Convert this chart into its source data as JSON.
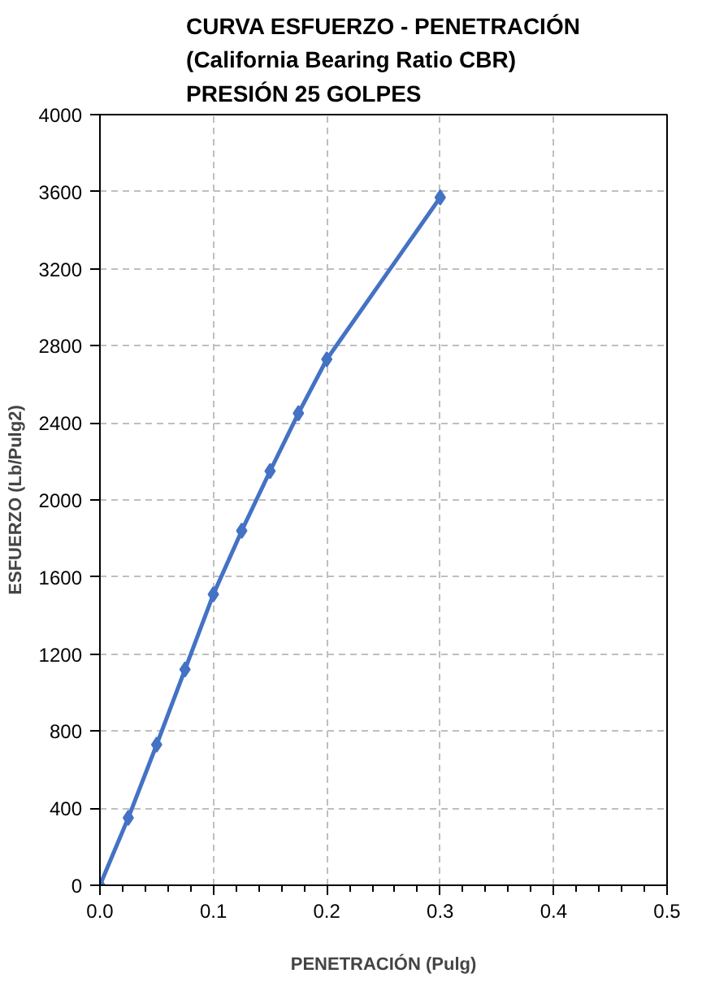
{
  "chart_data": {
    "type": "line",
    "title": "CURVA ESFUERZO - PENETRACIÓN\n(California Bearing Ratio CBR)\nPRESIÓN 25 GOLPES",
    "xlabel": "PENETRACIÓN (Pulg)",
    "ylabel": "ESFUERZO (Lb/Pulg2)",
    "x": [
      0,
      0.025,
      0.05,
      0.075,
      0.1,
      0.125,
      0.15,
      0.175,
      0.2,
      0.3
    ],
    "series": [
      {
        "color": "#4472c4",
        "values": [
          0,
          350,
          730,
          1120,
          1510,
          1840,
          2150,
          2450,
          2730,
          3570
        ]
      }
    ],
    "xlim": [
      0,
      0.5
    ],
    "xticks": [
      {
        "value": 0,
        "label": "0.0"
      },
      0.1,
      0.2,
      0.3,
      0.4,
      0.5
    ],
    "ylim": [
      0,
      4000
    ],
    "yticks": [
      0,
      400,
      800,
      1200,
      1600,
      2000,
      2400,
      2800,
      3200,
      3600,
      4000
    ],
    "grid": true,
    "marker": "diamond",
    "line_style": "solid"
  }
}
